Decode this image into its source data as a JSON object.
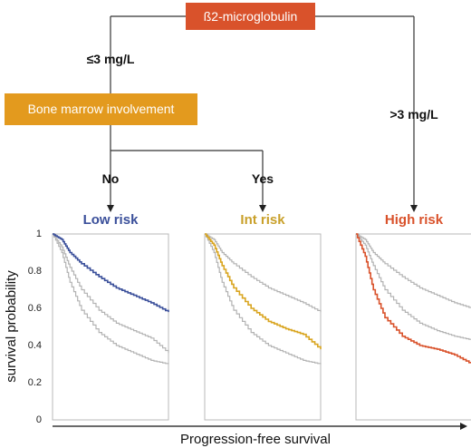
{
  "tree": {
    "root": {
      "label": "ß2-microglobulin",
      "color": "#d9522b"
    },
    "left_branch": {
      "label": "≤3 mg/L"
    },
    "right_branch": {
      "label": ">3 mg/L"
    },
    "mid_node": {
      "label": "Bone marrow involvement",
      "color": "#e39a1e"
    },
    "no_branch": {
      "label": "No"
    },
    "yes_branch": {
      "label": "Yes"
    }
  },
  "axes": {
    "ylabel": "survival probability",
    "xlabel": "Progression-free survival",
    "yticks": [
      "1",
      "0.8",
      "0.6",
      "0.4",
      "0.2",
      "0"
    ]
  },
  "chart_data": [
    {
      "type": "line",
      "title": "Low risk",
      "title_color": "#3a4f9a",
      "highlight_color": "#3a4f9a",
      "ylim": [
        0,
        1
      ],
      "highlight": 0,
      "series": [
        {
          "x": [
            0,
            0.08,
            0.15,
            0.25,
            0.4,
            0.55,
            0.7,
            0.85,
            1.0
          ],
          "y": [
            1,
            0.97,
            0.9,
            0.84,
            0.77,
            0.71,
            0.67,
            0.63,
            0.58
          ]
        },
        {
          "x": [
            0,
            0.08,
            0.15,
            0.25,
            0.4,
            0.55,
            0.7,
            0.85,
            1.0
          ],
          "y": [
            1,
            0.93,
            0.82,
            0.7,
            0.59,
            0.52,
            0.48,
            0.44,
            0.36
          ]
        },
        {
          "x": [
            0,
            0.08,
            0.15,
            0.25,
            0.4,
            0.55,
            0.7,
            0.85,
            1.0
          ],
          "y": [
            1,
            0.9,
            0.74,
            0.59,
            0.47,
            0.4,
            0.36,
            0.32,
            0.3
          ]
        }
      ]
    },
    {
      "type": "line",
      "title": "Int risk",
      "title_color": "#c9a02a",
      "highlight_color": "#d9a520",
      "ylim": [
        0,
        1
      ],
      "highlight": 1,
      "series": [
        {
          "x": [
            0,
            0.08,
            0.15,
            0.25,
            0.4,
            0.55,
            0.7,
            0.85,
            1.0
          ],
          "y": [
            1,
            0.97,
            0.9,
            0.84,
            0.77,
            0.71,
            0.67,
            0.63,
            0.58
          ]
        },
        {
          "x": [
            0,
            0.08,
            0.15,
            0.25,
            0.4,
            0.55,
            0.7,
            0.85,
            1.0
          ],
          "y": [
            1,
            0.94,
            0.83,
            0.71,
            0.6,
            0.53,
            0.49,
            0.46,
            0.38
          ]
        },
        {
          "x": [
            0,
            0.08,
            0.15,
            0.25,
            0.4,
            0.55,
            0.7,
            0.85,
            1.0
          ],
          "y": [
            1,
            0.9,
            0.74,
            0.59,
            0.47,
            0.4,
            0.36,
            0.32,
            0.3
          ]
        }
      ]
    },
    {
      "type": "line",
      "title": "High risk",
      "title_color": "#d9522b",
      "highlight_color": "#d9522b",
      "ylim": [
        0,
        1
      ],
      "highlight": 2,
      "series": [
        {
          "x": [
            0,
            0.08,
            0.15,
            0.25,
            0.4,
            0.55,
            0.7,
            0.85,
            1.0
          ],
          "y": [
            1,
            0.97,
            0.9,
            0.84,
            0.77,
            0.71,
            0.67,
            0.63,
            0.6
          ]
        },
        {
          "x": [
            0,
            0.08,
            0.15,
            0.25,
            0.4,
            0.55,
            0.7,
            0.85,
            1.0
          ],
          "y": [
            1,
            0.94,
            0.83,
            0.7,
            0.59,
            0.52,
            0.48,
            0.45,
            0.43
          ]
        },
        {
          "x": [
            0,
            0.08,
            0.15,
            0.25,
            0.4,
            0.55,
            0.7,
            0.85,
            1.0
          ],
          "y": [
            1,
            0.88,
            0.7,
            0.55,
            0.45,
            0.4,
            0.38,
            0.35,
            0.3
          ]
        }
      ]
    }
  ]
}
